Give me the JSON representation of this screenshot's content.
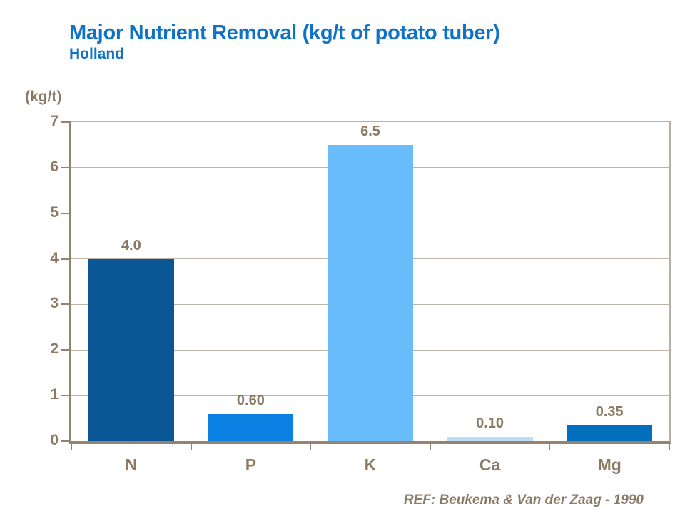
{
  "header": {
    "title": "Major Nutrient Removal (kg/t of potato tuber)",
    "subtitle": "Holland"
  },
  "footer": {
    "reference": "REF: Beukema & Van der Zaag - 1990"
  },
  "colors": {
    "title_blue": "#0F72C6",
    "text_brown": "#8A7A64",
    "axis_dark": "#93836F",
    "axis_light": "#BBAFA4",
    "gridline": "#BFB4A8",
    "background": "#FFFFFF"
  },
  "chart_data": {
    "type": "bar",
    "title": "Major Nutrient Removal (kg/t of potato tuber)",
    "subtitle": "Holland",
    "categories": [
      "N",
      "P",
      "K",
      "Ca",
      "Mg"
    ],
    "values": [
      4.0,
      0.6,
      6.5,
      0.1,
      0.35
    ],
    "value_labels": [
      "4.0",
      "0.60",
      "6.5",
      "0.10",
      "0.35"
    ],
    "bar_colors": [
      "#0B5795",
      "#0C81E4",
      "#68BDFA",
      "#BBDDF7",
      "#0070BE"
    ],
    "xlabel": "",
    "ylabel": "(kg/t)",
    "ylim": [
      0,
      7
    ],
    "yticks": [
      0,
      1,
      2,
      3,
      4,
      5,
      6,
      7
    ],
    "grid": true,
    "legend": "none",
    "annotation": "REF: Beukema & Van der Zaag - 1990"
  }
}
